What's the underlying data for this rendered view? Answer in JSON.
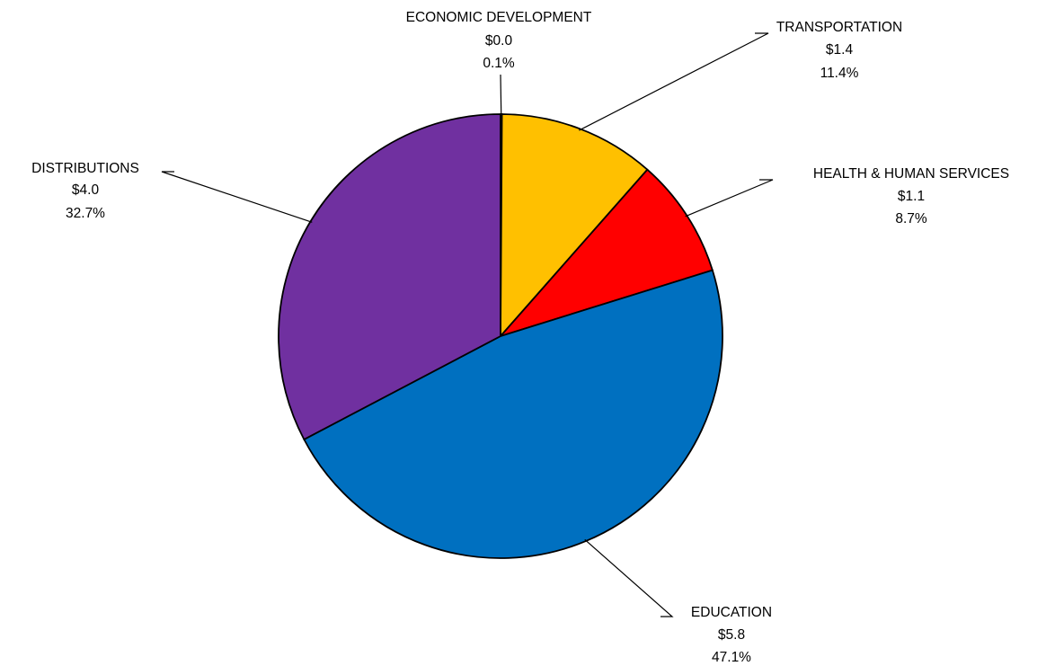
{
  "chart_data": {
    "type": "pie",
    "start_angle_deg_clockwise_from_top": 0,
    "slices": [
      {
        "label": "ECONOMIC DEVELOPMENT",
        "value_label": "$0.0",
        "pct_label": "0.1%",
        "value": 0.0,
        "pct": 0.1,
        "color": "#000000"
      },
      {
        "label": "TRANSPORTATION",
        "value_label": "$1.4",
        "pct_label": "11.4%",
        "value": 1.4,
        "pct": 11.4,
        "color": "#FFC000"
      },
      {
        "label": "HEALTH & HUMAN SERVICES",
        "value_label": "$1.1",
        "pct_label": "8.7%",
        "value": 1.1,
        "pct": 8.7,
        "color": "#FF0000"
      },
      {
        "label": "EDUCATION",
        "value_label": "$5.8",
        "pct_label": "47.1%",
        "value": 5.8,
        "pct": 47.1,
        "color": "#0070C0"
      },
      {
        "label": "DISTRIBUTIONS",
        "value_label": "$4.0",
        "pct_label": "32.7%",
        "value": 4.0,
        "pct": 32.7,
        "color": "#7030A0"
      }
    ]
  }
}
